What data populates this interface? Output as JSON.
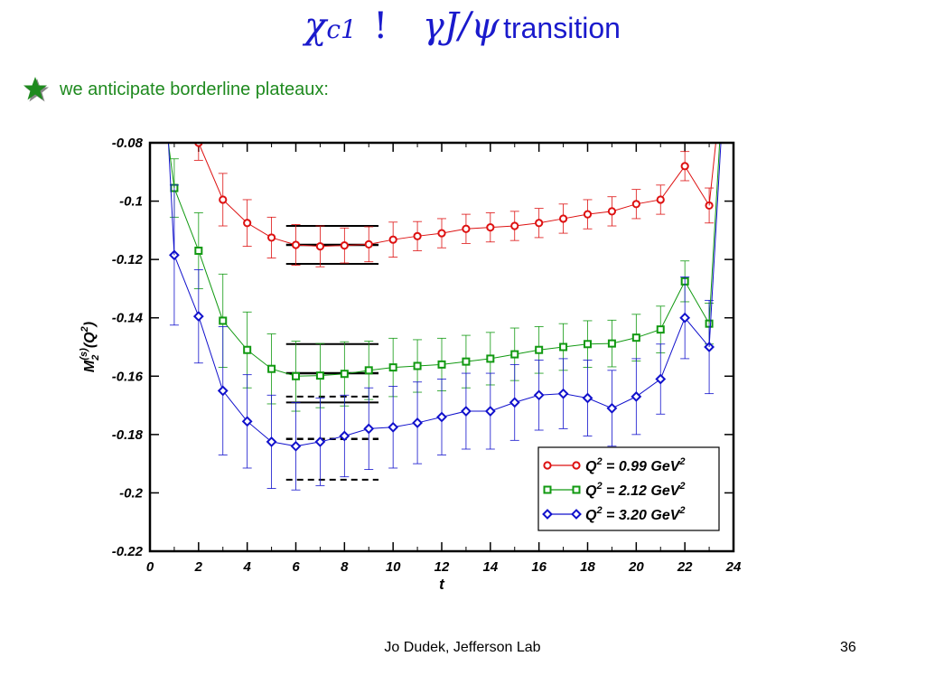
{
  "slide": {
    "title": {
      "chi": "χ",
      "sub": "c1",
      "arrow": "!",
      "product": "γJ/ψ",
      "word": "transition"
    },
    "bullet": "we anticipate borderline plateaux:",
    "footer": "Jo Dudek, Jefferson Lab",
    "page_number": "36"
  },
  "colors": {
    "title": "#1a1acc",
    "bullet_text": "#1f8a1f",
    "star": "#1f8a1f",
    "red": "#dd1111",
    "green": "#119911",
    "blue": "#1111cc"
  },
  "chart_data": {
    "type": "scatter",
    "xlabel": "t",
    "ylabel": "M_2^(s)(Q^2)",
    "xlim": [
      0,
      24
    ],
    "ylim": [
      -0.22,
      -0.08
    ],
    "xticks": [
      0,
      2,
      4,
      6,
      8,
      10,
      12,
      14,
      16,
      18,
      20,
      22,
      24
    ],
    "yticks": [
      -0.08,
      -0.1,
      -0.12,
      -0.14,
      -0.16,
      -0.18,
      -0.2,
      -0.22
    ],
    "ytick_labels": [
      "-0.08",
      "-0.1",
      "-0.12",
      "-0.14",
      "-0.16",
      "-0.18",
      "-0.2",
      "-0.22"
    ],
    "legend_position": "bottom-right",
    "series": [
      {
        "label": "Q² = 0.99 GeV²",
        "q2": "0.99",
        "color": "#dd1111",
        "marker": "circle",
        "x": [
          2,
          3,
          4,
          5,
          6,
          7,
          8,
          9,
          10,
          11,
          12,
          13,
          14,
          15,
          16,
          17,
          18,
          19,
          20,
          21,
          22,
          23
        ],
        "y": [
          -0.08,
          -0.0995,
          -0.1075,
          -0.1125,
          -0.115,
          -0.1155,
          -0.1152,
          -0.1148,
          -0.1132,
          -0.112,
          -0.111,
          -0.1095,
          -0.109,
          -0.1085,
          -0.1075,
          -0.106,
          -0.1045,
          -0.1035,
          -0.101,
          -0.0995,
          -0.088,
          -0.1015
        ],
        "err": [
          0.006,
          0.009,
          0.008,
          0.007,
          0.007,
          0.007,
          0.006,
          0.006,
          0.006,
          0.005,
          0.005,
          0.005,
          0.005,
          0.005,
          0.005,
          0.005,
          0.005,
          0.005,
          0.005,
          0.005,
          0.005,
          0.006
        ],
        "plateau": {
          "x": [
            5.6,
            9.4
          ],
          "center": -0.115,
          "band": [
            -0.1085,
            -0.1215
          ],
          "dashed": false
        }
      },
      {
        "label": "Q² = 2.12 GeV²",
        "q2": "2.12",
        "color": "#119911",
        "marker": "square",
        "x": [
          1,
          2,
          3,
          4,
          5,
          6,
          7,
          8,
          9,
          10,
          11,
          12,
          13,
          14,
          15,
          16,
          17,
          18,
          19,
          20,
          21,
          22,
          23
        ],
        "y": [
          -0.0955,
          -0.117,
          -0.141,
          -0.151,
          -0.1575,
          -0.16,
          -0.1598,
          -0.1592,
          -0.158,
          -0.157,
          -0.1565,
          -0.156,
          -0.155,
          -0.154,
          -0.1525,
          -0.151,
          -0.15,
          -0.149,
          -0.1488,
          -0.1468,
          -0.144,
          -0.1275,
          -0.142
        ],
        "err": [
          0.01,
          0.013,
          0.016,
          0.013,
          0.012,
          0.012,
          0.011,
          0.011,
          0.01,
          0.01,
          0.009,
          0.009,
          0.009,
          0.009,
          0.009,
          0.008,
          0.008,
          0.008,
          0.008,
          0.008,
          0.008,
          0.007,
          0.007
        ],
        "plateau": {
          "x": [
            5.6,
            9.4
          ],
          "center": -0.159,
          "band": [
            -0.149,
            -0.169
          ],
          "dashed": false
        }
      },
      {
        "label": "Q² = 3.20 GeV²",
        "q2": "3.20",
        "color": "#1111cc",
        "marker": "diamond",
        "x": [
          1,
          2,
          3,
          4,
          5,
          6,
          7,
          8,
          9,
          10,
          11,
          12,
          13,
          14,
          15,
          16,
          17,
          18,
          19,
          20,
          21,
          22,
          23
        ],
        "y": [
          -0.1185,
          -0.1395,
          -0.165,
          -0.1755,
          -0.1825,
          -0.184,
          -0.1825,
          -0.1805,
          -0.178,
          -0.1775,
          -0.176,
          -0.174,
          -0.172,
          -0.172,
          -0.169,
          -0.1665,
          -0.166,
          -0.1675,
          -0.171,
          -0.167,
          -0.161,
          -0.14,
          -0.15
        ],
        "err": [
          0.024,
          0.016,
          0.022,
          0.016,
          0.016,
          0.015,
          0.015,
          0.014,
          0.014,
          0.014,
          0.014,
          0.013,
          0.013,
          0.013,
          0.013,
          0.012,
          0.012,
          0.013,
          0.013,
          0.013,
          0.012,
          0.014,
          0.016
        ],
        "plateau": {
          "x": [
            5.6,
            9.4
          ],
          "center": -0.1815,
          "band": [
            -0.167,
            -0.1955
          ],
          "dashed": true
        }
      }
    ]
  }
}
